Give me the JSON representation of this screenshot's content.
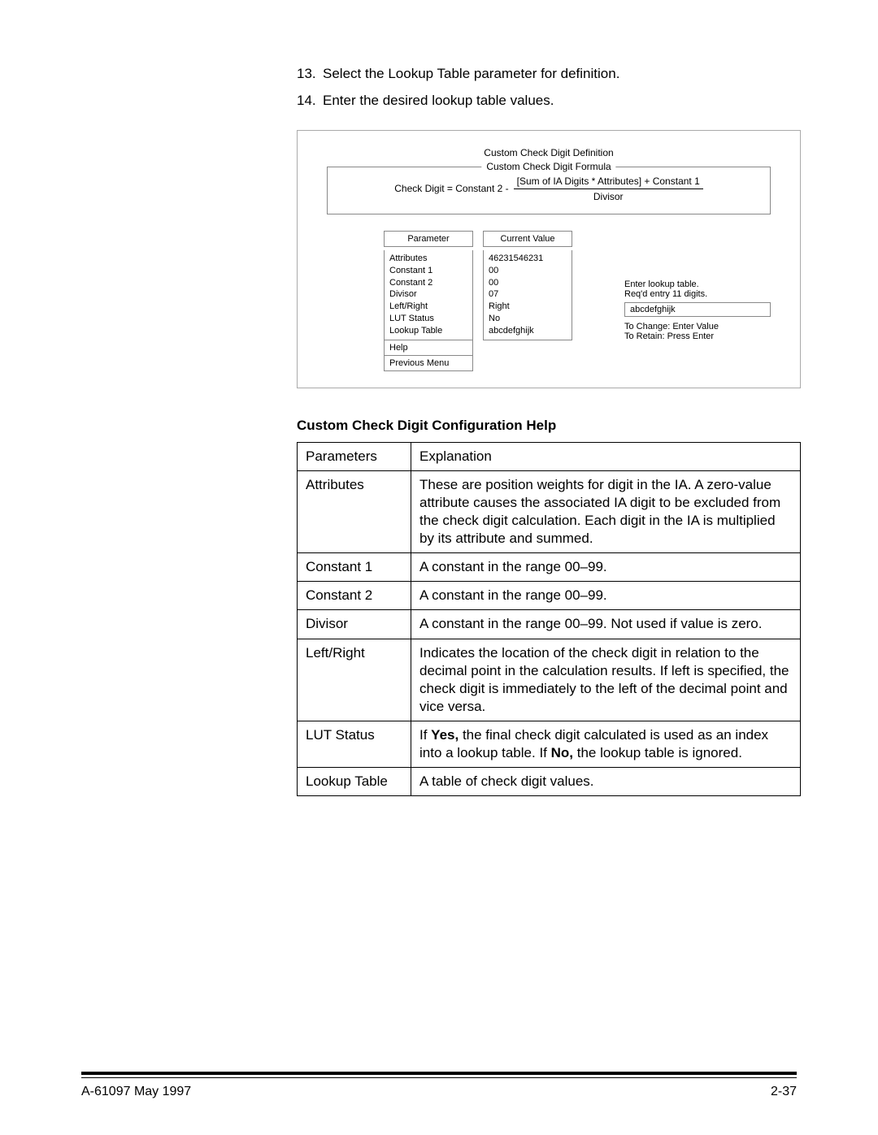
{
  "steps": [
    {
      "num": "13.",
      "text": "Select the Lookup Table parameter for definition."
    },
    {
      "num": "14.",
      "text": "Enter the desired lookup table values."
    }
  ],
  "screen": {
    "title": "Custom Check Digit Definition",
    "formulaLegend": "Custom Check Digit Formula",
    "formulaLeft": "Check Digit  =  Constant 2  -",
    "fracTop": "[Sum of IA Digits  *  Attributes]  +  Constant 1",
    "fracBot": "Divisor",
    "paramHeader": "Parameter",
    "valueHeader": "Current Value",
    "params": [
      "Attributes",
      "Constant 1",
      "Constant 2",
      "Divisor",
      "Left/Right",
      "LUT Status",
      "Lookup Table"
    ],
    "values": [
      "46231546231",
      "00",
      "00",
      "07",
      "Right",
      "No",
      "abcdefghijk"
    ],
    "helpItem": "Help",
    "prevItem": "Previous Menu",
    "promptLine1": "Enter lookup table.",
    "promptLine2": "Req'd entry 11 digits.",
    "entryValue": "abcdefghijk",
    "hint1": "To Change: Enter Value",
    "hint2": "To Retain: Press Enter"
  },
  "helpHeading": "Custom Check Digit Configuration Help",
  "helpTable": {
    "headParam": "Parameters",
    "headExpl": "Explanation",
    "rows": [
      {
        "p": "Attributes",
        "e": "These are position weights for digit in the IA. A zero-value attribute causes the associated IA digit to be excluded from the check digit calculation. Each digit in the IA is multiplied by its attribute and summed."
      },
      {
        "p": "Constant 1",
        "e": "A constant in the range 00–99."
      },
      {
        "p": "Constant 2",
        "e": "A constant in the range 00–99."
      },
      {
        "p": "Divisor",
        "e": "A constant in the range 00–99. Not used if value is zero."
      },
      {
        "p": "Left/Right",
        "e": "Indicates the location of the check digit in relation to the decimal point in the calculation results. If left is specified, the check digit is immediately to the left of the decimal point and vice versa."
      },
      {
        "p": "LUT Status",
        "e_html": "If <b>Yes,</b> the final check digit calculated is used as an index into a lookup table. If <b>No,</b> the lookup table is ignored."
      },
      {
        "p": "Lookup Table",
        "e": "A table of check digit values."
      }
    ]
  },
  "footer": {
    "left": "A-61097    May 1997",
    "right": "2-37"
  }
}
